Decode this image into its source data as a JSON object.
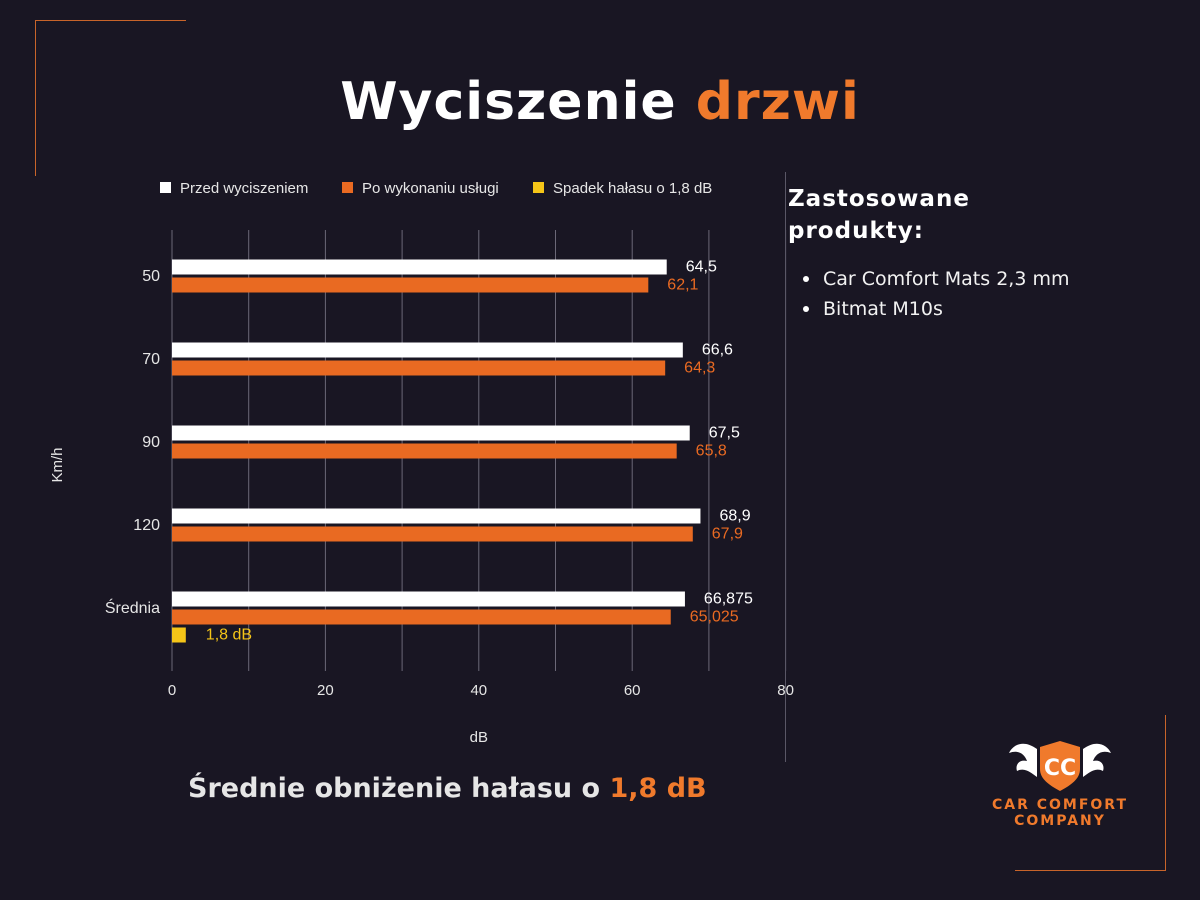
{
  "title": {
    "part1": "Wyciszenie",
    "part2": "drzwi"
  },
  "chart_data": {
    "type": "bar",
    "orientation": "horizontal",
    "categories": [
      "50",
      "70",
      "90",
      "120",
      "Średnia"
    ],
    "series": [
      {
        "name": "Przed wyciszeniem",
        "color": "#ffffff",
        "values": [
          64.5,
          66.6,
          67.5,
          68.9,
          66.875
        ],
        "labels": [
          "64,5",
          "66,6",
          "67,5",
          "68,9",
          "66,875"
        ]
      },
      {
        "name": "Po wykonaniu usługi",
        "color": "#e96a22",
        "values": [
          62.1,
          64.3,
          65.8,
          67.9,
          65.025
        ],
        "labels": [
          "62,1",
          "64,3",
          "65,8",
          "67,9",
          "65,025"
        ]
      },
      {
        "name": "Spadek hałasu o 1,8 dB",
        "color": "#f5c518",
        "values": [
          null,
          null,
          null,
          null,
          1.8
        ],
        "labels": [
          "",
          "",
          "",
          "",
          "1,8 dB"
        ]
      }
    ],
    "xlabel": "dB",
    "ylabel": "Km/h",
    "xlim": [
      0,
      80
    ],
    "xticks": [
      "0",
      "20",
      "40",
      "60",
      "80"
    ],
    "grid": true,
    "legend": "top"
  },
  "products": {
    "heading_line1": "Zastosowane",
    "heading_line2": "produkty:",
    "items": [
      "Car Comfort Mats 2,3 mm",
      "Bitmat M10s"
    ]
  },
  "summary": {
    "text": "Średnie obniżenie hałasu o ",
    "highlight": "1,8 dB"
  },
  "logo": {
    "line1": "CAR COMFORT",
    "line2": "COMPANY"
  },
  "colors": {
    "background": "#191623",
    "accent": "#f07a2c",
    "yellow": "#f5c518"
  }
}
